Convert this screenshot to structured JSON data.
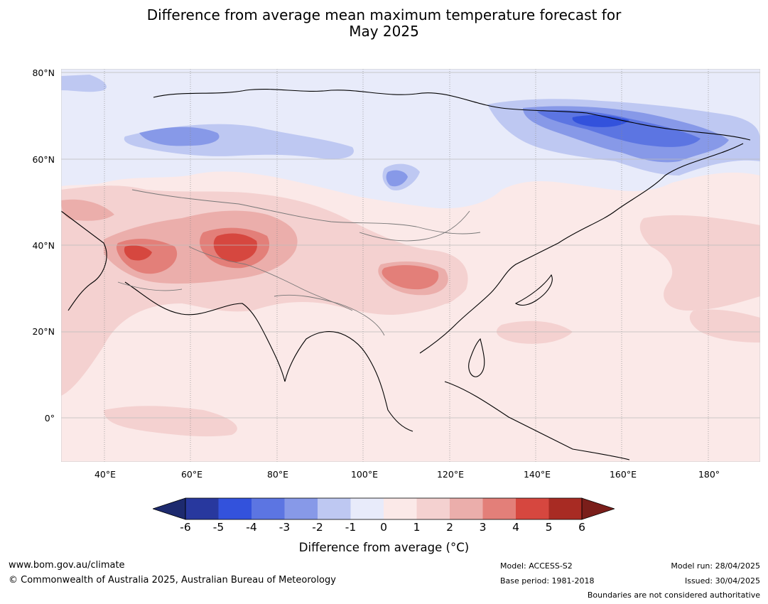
{
  "title": {
    "line1": "Difference from average mean maximum temperature forecast for",
    "line2": "May 2025"
  },
  "axes": {
    "lat_labels": [
      "80°N",
      "60°N",
      "40°N",
      "20°N",
      "0°"
    ],
    "lon_labels": [
      "40°E",
      "60°E",
      "80°E",
      "100°E",
      "120°E",
      "140°E",
      "160°E",
      "180°"
    ]
  },
  "colorbar": {
    "label": "Difference from average (°C)",
    "ticks": [
      "-6",
      "-5",
      "-4",
      "-3",
      "-2",
      "-1",
      "0",
      "1",
      "2",
      "3",
      "4",
      "5",
      "6"
    ],
    "colors": [
      "#28389e",
      "#3352dc",
      "#5c75e2",
      "#8799e8",
      "#bec8f2",
      "#e8ebfa",
      "#fbe9e8",
      "#f4d1d0",
      "#ebaeab",
      "#e37f79",
      "#d6473f",
      "#a82b23"
    ],
    "under_color": "#1d2a6e",
    "over_color": "#7a1e1a"
  },
  "footer": {
    "website": "www.bom.gov.au/climate",
    "copyright": "© Commonwealth of Australia 2025, Australian Bureau of Meteorology",
    "model": "Model: ACCESS-S2",
    "base_period": "Base period: 1981-2018",
    "model_run": "Model run: 28/04/2025",
    "issued": "Issued: 30/04/2025",
    "disclaimer": "Boundaries are not considered authoritative"
  }
}
